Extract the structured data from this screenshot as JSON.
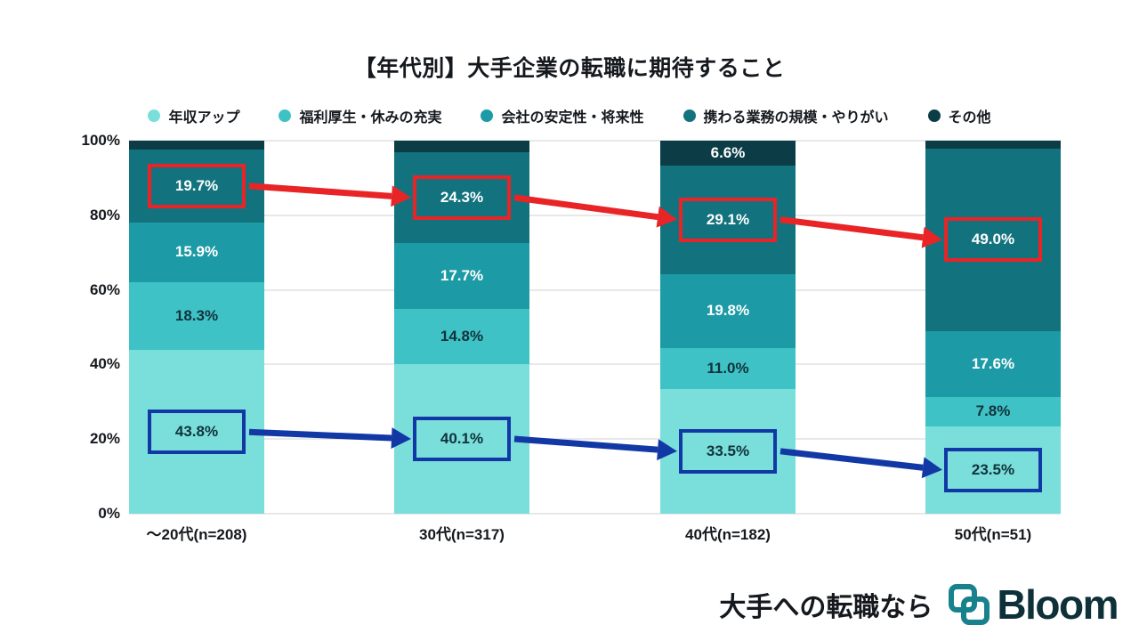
{
  "title": "【年代別】大手企業の転職に期待すること",
  "legend": [
    {
      "label": "年収アップ",
      "color": "#7ADEDA"
    },
    {
      "label": "福利厚生・休みの充実",
      "color": "#3FC2C5"
    },
    {
      "label": "会社の安定性・将来性",
      "color": "#1C9AA6"
    },
    {
      "label": "携わる業務の規模・やりがい",
      "color": "#12737E"
    },
    {
      "label": "その他",
      "color": "#0C3D47"
    }
  ],
  "chart_data": {
    "type": "bar",
    "subtype": "100%-stacked-column",
    "title": "【年代別】大手企業の転職に期待すること",
    "categories": [
      "～20代(n=208)",
      "30代(n=317)",
      "40代(n=182)",
      "50代(n=51)"
    ],
    "series": [
      {
        "name": "年収アップ",
        "color": "#7ADEDA",
        "label_color": "#10333C",
        "highlight": "blue",
        "values": [
          43.8,
          40.1,
          33.5,
          23.5
        ]
      },
      {
        "name": "福利厚生・休みの充実",
        "color": "#3FC2C5",
        "label_color": "#10333C",
        "values": [
          18.3,
          14.8,
          11.0,
          7.8
        ]
      },
      {
        "name": "会社の安定性・将来性",
        "color": "#1C9AA6",
        "label_color": "#FFFFFF",
        "values": [
          15.9,
          17.7,
          19.8,
          17.6
        ]
      },
      {
        "name": "携わる業務の規模・やりがい",
        "color": "#12737E",
        "label_color": "#FFFFFF",
        "highlight": "red",
        "values": [
          19.7,
          24.3,
          29.1,
          49.0
        ]
      },
      {
        "name": "その他",
        "color": "#0C3D47",
        "label_color": "#FFFFFF",
        "values": [
          2.3,
          3.1,
          6.6,
          2.1
        ]
      }
    ],
    "y_ticks": [
      "0%",
      "20%",
      "40%",
      "60%",
      "80%",
      "100%"
    ],
    "ylim": [
      0,
      100
    ],
    "grid": true,
    "legend_position": "top",
    "highlight_colors": {
      "red": "#E82427",
      "blue": "#1238A6"
    }
  },
  "footer": {
    "tagline": "大手への転職なら",
    "brand": "Bloom",
    "brand_color": "#17828D"
  }
}
